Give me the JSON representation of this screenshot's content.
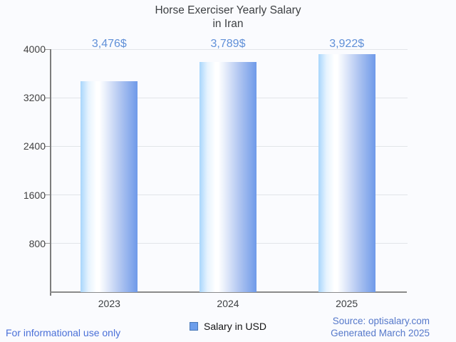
{
  "title": {
    "line1": "Horse Exerciser Yearly Salary",
    "line2": "in Iran"
  },
  "legend": {
    "label": "Salary in USD",
    "marker_color": "#6d9eeb",
    "marker_border": "#4878b8"
  },
  "footer": {
    "left": "For informational use only",
    "source": "Source: optisalary.com",
    "generated": "Generated March 2025"
  },
  "chart_data": {
    "type": "bar",
    "title": "Horse Exerciser Yearly Salary in Iran",
    "categories": [
      "2023",
      "2024",
      "2025"
    ],
    "values": [
      3476,
      3789,
      3922
    ],
    "value_labels": [
      "3,476$",
      "3,789$",
      "3,922$"
    ],
    "series_name": "Salary in USD",
    "xlabel": "",
    "ylabel": "",
    "ylim": [
      0,
      4000
    ],
    "yticks": [
      800,
      1600,
      2400,
      3200,
      4000
    ],
    "grid": true,
    "legend_position": "bottom-center",
    "colors": {
      "bar_gradient_stops": [
        [
          "#a8d6fc",
          "0%"
        ],
        [
          "#e6f3fe",
          "14%"
        ],
        [
          "#ffffff",
          "28%"
        ],
        [
          "#ffffff",
          "33%"
        ],
        [
          "#e2eafa",
          "47%"
        ],
        [
          "#abc2f0",
          "72%"
        ],
        [
          "#6f9ae9",
          "100%"
        ]
      ],
      "value_label": "#6090d8",
      "tick_label": "#424242",
      "title": "#3d4043",
      "gridline": "#e2e5e9",
      "axis_line": "#8a8a8a",
      "background": "#fafbfe",
      "footer_left": "#4a70d8",
      "footer_right": "#5578ca"
    }
  }
}
